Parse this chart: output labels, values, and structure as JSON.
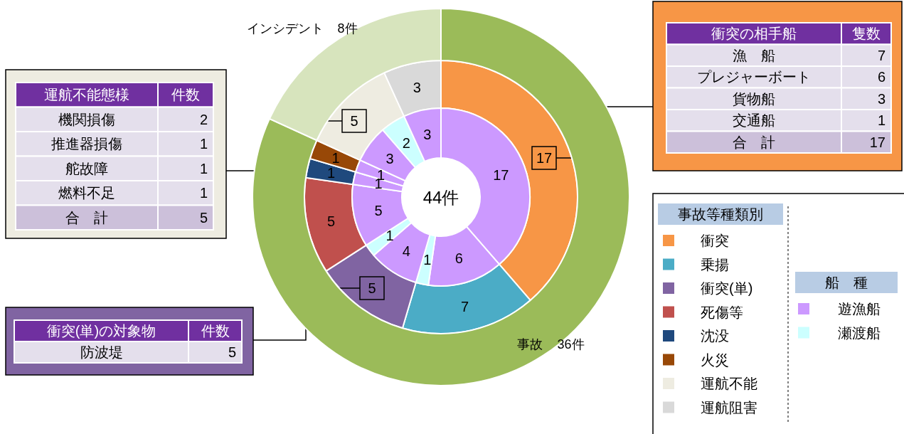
{
  "chart_data": [
    {
      "type": "donut",
      "annotations": [
        "44件"
      ],
      "categories": [
        "事故",
        "インシデント"
      ],
      "values": [
        36,
        8
      ],
      "colors": [
        "#9bbb59",
        "#d7e4bd"
      ],
      "value_labels": [
        "36件",
        "8件"
      ]
    },
    {
      "type": "donut",
      "data_labels": true,
      "legend": "right",
      "legend_title": "事故等種類別",
      "categories": [
        "衝突",
        "乗揚",
        "衝突(単)",
        "死傷等",
        "沈没",
        "火災",
        "運航不能",
        "運航阻害"
      ],
      "values": [
        17,
        7,
        5,
        5,
        1,
        1,
        5,
        3
      ],
      "colors": [
        "#f79646",
        "#4bacc6",
        "#8064a2",
        "#c0504d",
        "#1f497d",
        "#984807",
        "#eeece1",
        "#d9d9d9"
      ]
    },
    {
      "type": "donut",
      "data_labels": true,
      "legend": "right",
      "legend_title": "船　種",
      "categories": [
        "遊漁船",
        null,
        "瀬渡船",
        null,
        null,
        null,
        null,
        null,
        null,
        null,
        null
      ],
      "values": [
        17,
        6,
        1,
        4,
        1,
        5,
        1,
        1,
        3,
        2,
        3
      ],
      "colors": [
        "#cc99ff",
        "#cc99ff",
        "#ccffff",
        "#cc99ff",
        "#ccffff",
        "#cc99ff",
        "#cc99ff",
        "#cc99ff",
        "#cc99ff",
        "#ccffff",
        "#cc99ff"
      ]
    },
    {
      "type": "other",
      "color": "#eeece1",
      "annotations": [
        "運航不能態様",
        "件数",
        "機関損傷",
        "2",
        "推進器損傷",
        "1",
        "舵故障",
        "1",
        "燃料不足",
        "1"
      ],
      "totals": [
        "合　計",
        "5"
      ]
    },
    {
      "type": "other",
      "color": "#f79646",
      "annotations": [
        "衝突の相手船",
        "隻数",
        "漁　船",
        "7",
        "プレジャーボート",
        "6",
        "貨物船",
        "3",
        "交通船",
        "1"
      ],
      "totals": [
        "合　計",
        "17"
      ]
    },
    {
      "type": "other",
      "color": "#8064a2",
      "annotations": [
        "衝突(単)の対象物",
        "件数",
        "防波堤",
        "5"
      ]
    }
  ]
}
